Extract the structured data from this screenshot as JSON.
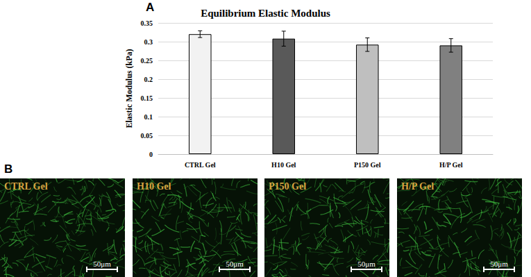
{
  "chart_data": {
    "type": "bar",
    "title": "Equilibrium Elastic Modulus",
    "y_label": "Elastic Modulus (kPa)",
    "categories": [
      "CTRL Gel",
      "H10 Gel",
      "P150 Gel",
      "H/P Gel"
    ],
    "values": [
      0.32,
      0.308,
      0.292,
      0.29
    ],
    "errors": [
      0.009,
      0.02,
      0.018,
      0.018
    ],
    "colors": [
      "#f2f2f2",
      "#595959",
      "#bfbfbf",
      "#808080"
    ],
    "ylim": [
      0,
      0.35
    ],
    "yticks": [
      0,
      0.05,
      0.1,
      0.15,
      0.2,
      0.25,
      0.3,
      0.35
    ],
    "grid": true
  },
  "panel_labels": [
    "A",
    "B"
  ],
  "images": [
    {
      "label": "CTRL Gel",
      "scale_bar": "50μm"
    },
    {
      "label": "H10 Gel",
      "scale_bar": "50μm"
    },
    {
      "label": "P150 Gel",
      "scale_bar": "50μm"
    },
    {
      "label": "H/P Gel",
      "scale_bar": "50μm"
    }
  ]
}
